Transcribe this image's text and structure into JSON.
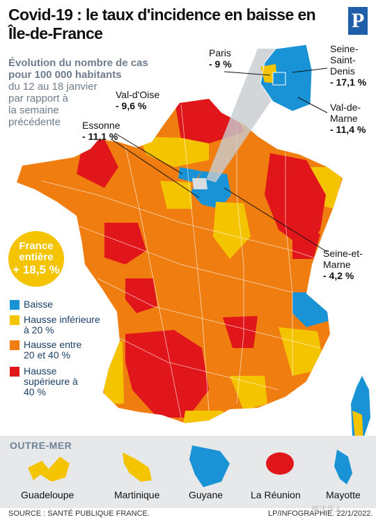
{
  "title": "Covid-19 : le taux d'incidence en baisse en Île-de-France",
  "logo": "P",
  "subtitle": {
    "bold": [
      "Évolution du nombre de cas",
      "pour 100 000 habitants"
    ],
    "normal": [
      "du 12 au 18 janvier",
      "par rapport à",
      "la semaine",
      "précédente"
    ]
  },
  "departments": {
    "paris": {
      "name": "Paris",
      "value": "- 9 %"
    },
    "seine_saint_denis": {
      "name": [
        "Seine-",
        "Saint-",
        "Denis"
      ],
      "value": "- 17,1 %"
    },
    "val_de_marne": {
      "name": [
        "Val-de-",
        "Marne"
      ],
      "value": "- 11,4 %"
    },
    "val_d_oise": {
      "name": "Val-d'Oise",
      "value": "- 9,6 %"
    },
    "essonne": {
      "name": "Essonne",
      "value": "- 11,1 %"
    },
    "seine_et_marne": {
      "name": [
        "Seine-et-",
        "Marne"
      ],
      "value": "- 4,2 %"
    }
  },
  "france_entiere": {
    "label": [
      "France",
      "entière"
    ],
    "value": "+ 18,5 %"
  },
  "legend": [
    {
      "label": "Baisse",
      "color": "#1a93d6"
    },
    {
      "label": "Hausse inférieure à 20 %",
      "color": "#f5c400"
    },
    {
      "label": "Hausse entre 20 et 40 %",
      "color": "#ef7d10"
    },
    {
      "label": "Hausse supérieure à 40 %",
      "color": "#e0161a"
    }
  ],
  "outre_mer": {
    "title": "OUTRE-MER",
    "territories": [
      {
        "name": "Guadeloupe",
        "category": "Hausse inférieure à 20 %"
      },
      {
        "name": "Martinique",
        "category": "Hausse inférieure à 20 %"
      },
      {
        "name": "Guyane",
        "category": "Baisse"
      },
      {
        "name": "La Réunion",
        "category": "Hausse supérieure à 40 %"
      },
      {
        "name": "Mayotte",
        "category": "Baisse"
      }
    ]
  },
  "source": "SOURCE : SANTÉ PUBLIQUE FRANCE.",
  "credit": "LP/INFOGRAPHIE.  22/1/2022.",
  "watermark": "旅法华人"
}
